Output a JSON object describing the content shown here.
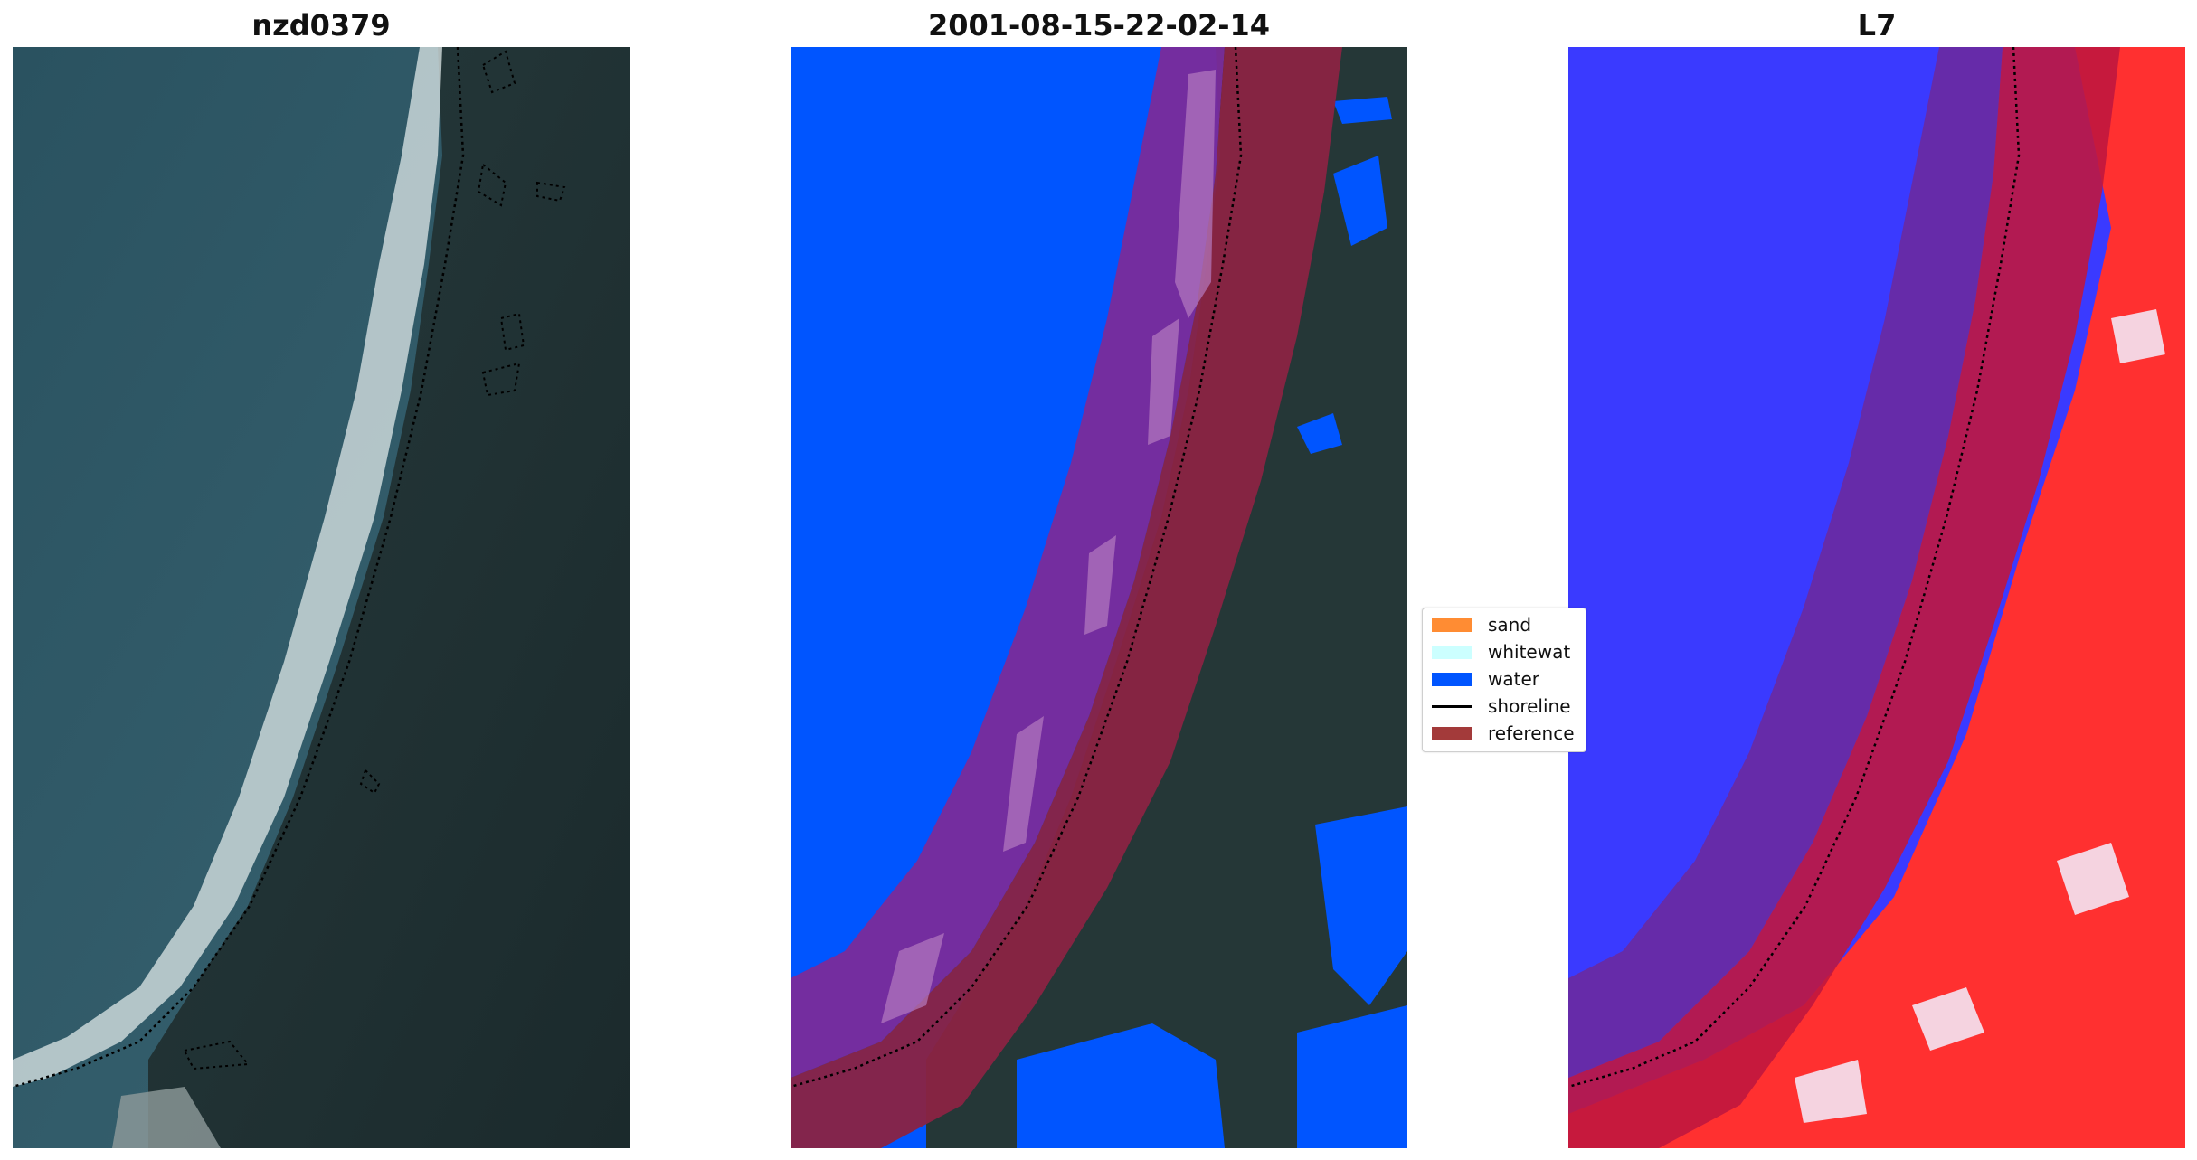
{
  "panels": [
    {
      "id": "rgb",
      "title": "nzd0379"
    },
    {
      "id": "classified",
      "title": "2001-08-15-22-02-14"
    },
    {
      "id": "index",
      "title": "L7"
    }
  ],
  "legend": {
    "items": [
      {
        "label": "sand",
        "color": "#ff8c33"
      },
      {
        "label": "whitewat",
        "color": "#ccffff"
      },
      {
        "label": "water",
        "color": "#0055ff"
      },
      {
        "label": "shoreline",
        "color": "#000000"
      },
      {
        "label": "reference",
        "color": "#a33a3a"
      }
    ]
  },
  "colors": {
    "ocean": "#2c5563",
    "land": "#1f3233",
    "surf": "#e8eeee",
    "buffer": "#b0214a",
    "index_water": "#3535ff",
    "index_land": "#ff2a2a"
  }
}
